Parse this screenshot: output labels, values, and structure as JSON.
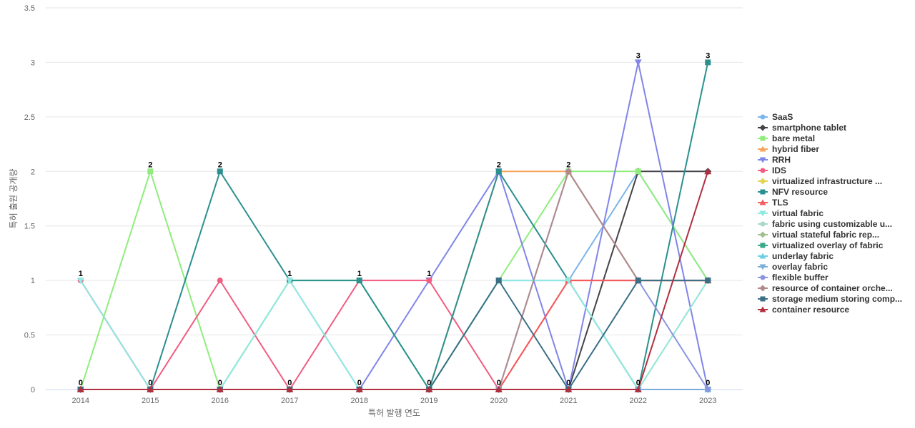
{
  "chart_data": {
    "type": "line",
    "xlabel": "특허 발행 연도",
    "ylabel": "특허 출원 공개량",
    "ylim": [
      0,
      3.5
    ],
    "yticks": [
      "0",
      "0.5",
      "1",
      "1.5",
      "2",
      "2.5",
      "3",
      "3.5"
    ],
    "categories": [
      "2014",
      "2015",
      "2016",
      "2017",
      "2018",
      "2019",
      "2020",
      "2021",
      "2022",
      "2023"
    ],
    "legend_position": "right",
    "grid": true,
    "series": [
      {
        "name": "SaaS",
        "color": "#7cb5ec",
        "marker": "circle",
        "values": [
          1,
          0,
          0,
          1,
          0,
          0,
          1,
          1,
          2,
          1
        ]
      },
      {
        "name": "smartphone tablet",
        "color": "#434348",
        "marker": "diamond",
        "values": [
          0,
          0,
          0,
          0,
          0,
          0,
          0,
          0,
          2,
          2
        ]
      },
      {
        "name": "bare metal",
        "color": "#90ed7d",
        "marker": "square",
        "values": [
          0,
          2,
          0,
          1,
          1,
          0,
          1,
          2,
          2,
          1
        ]
      },
      {
        "name": "hybrid fiber",
        "color": "#f7a35c",
        "marker": "triangle",
        "values": [
          0,
          0,
          0,
          0,
          0,
          0,
          2,
          2,
          1,
          1
        ]
      },
      {
        "name": "RRH",
        "color": "#8085e9",
        "marker": "triangle-down",
        "values": [
          0,
          0,
          0,
          0,
          0,
          1,
          2,
          0,
          3,
          0
        ]
      },
      {
        "name": "IDS",
        "color": "#f15c80",
        "marker": "circle",
        "values": [
          1,
          0,
          1,
          0,
          1,
          1,
          0,
          1,
          1,
          1
        ]
      },
      {
        "name": "virtualized infrastructure ...",
        "color": "#e4d354",
        "marker": "diamond",
        "values": [
          0,
          0,
          0,
          0,
          0,
          0,
          0,
          0,
          0,
          1
        ]
      },
      {
        "name": "NFV resource",
        "color": "#2b908f",
        "marker": "square",
        "values": [
          0,
          0,
          2,
          1,
          1,
          0,
          2,
          1,
          0,
          3
        ]
      },
      {
        "name": "TLS",
        "color": "#f45b5b",
        "marker": "triangle",
        "values": [
          0,
          0,
          0,
          0,
          0,
          0,
          0,
          1,
          1,
          1
        ]
      },
      {
        "name": "virtual fabric",
        "color": "#91e8e1",
        "marker": "triangle-down",
        "values": [
          1,
          0,
          0,
          1,
          0,
          0,
          1,
          1,
          0,
          1
        ]
      },
      {
        "name": "fabric using customizable u...",
        "color": "#a8d8c8",
        "marker": "circle",
        "values": [
          0,
          0,
          0,
          0,
          0,
          0,
          0,
          0,
          0,
          0
        ]
      },
      {
        "name": "virtual stateful fabric rep...",
        "color": "#a0c090",
        "marker": "diamond",
        "values": [
          0,
          0,
          0,
          0,
          0,
          0,
          0,
          0,
          0,
          0
        ]
      },
      {
        "name": "virtualized overlay of fabric",
        "color": "#3aa88a",
        "marker": "square",
        "values": [
          0,
          0,
          0,
          0,
          0,
          0,
          0,
          0,
          0,
          0
        ]
      },
      {
        "name": "underlay fabric",
        "color": "#6cd0e0",
        "marker": "triangle",
        "values": [
          0,
          0,
          0,
          0,
          0,
          0,
          0,
          0,
          0,
          0
        ]
      },
      {
        "name": "overlay fabric",
        "color": "#7aaed8",
        "marker": "triangle-down",
        "values": [
          0,
          0,
          0,
          0,
          0,
          0,
          0,
          0,
          0,
          0
        ]
      },
      {
        "name": "flexible buffer",
        "color": "#8a95e0",
        "marker": "circle",
        "values": [
          0,
          0,
          0,
          0,
          0,
          0,
          0,
          2,
          1,
          0
        ]
      },
      {
        "name": "resource of container orche...",
        "color": "#b08a8a",
        "marker": "diamond",
        "values": [
          0,
          0,
          0,
          0,
          0,
          0,
          0,
          2,
          1,
          1
        ]
      },
      {
        "name": "storage medium storing comp...",
        "color": "#3a6f86",
        "marker": "square",
        "values": [
          0,
          0,
          0,
          0,
          0,
          0,
          1,
          0,
          1,
          1
        ]
      },
      {
        "name": "container resource",
        "color": "#b03040",
        "marker": "triangle",
        "values": [
          0,
          0,
          0,
          0,
          0,
          0,
          0,
          0,
          0,
          2
        ]
      }
    ],
    "data_labels": [
      1,
      2,
      2,
      1,
      1,
      1,
      2,
      2,
      3,
      3
    ]
  }
}
